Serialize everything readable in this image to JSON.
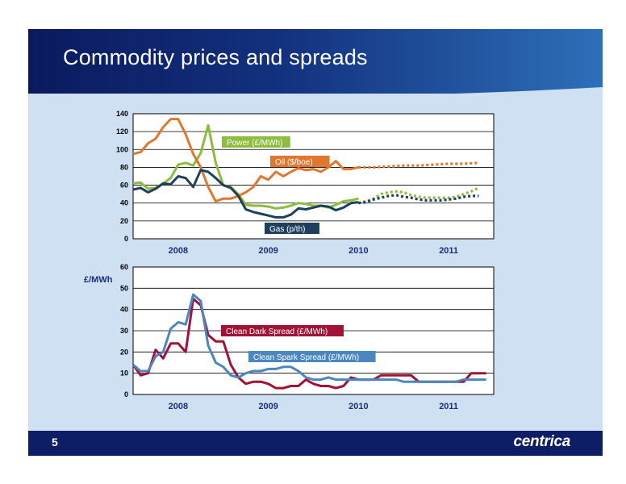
{
  "header": {
    "title": "Commodity prices and spreads"
  },
  "footer": {
    "page_number": "5",
    "logo": "centrica"
  },
  "colors": {
    "power": "#8dbd3c",
    "oil": "#e1772f",
    "gas": "#1f3f5f",
    "dark_spread": "#a31236",
    "spark_spread": "#4a86c0",
    "header": "#0b1a5e",
    "background": "#cfe0f2"
  },
  "chart_data": [
    {
      "type": "line",
      "ylim": [
        0,
        140
      ],
      "yticks": [
        0,
        20,
        40,
        60,
        80,
        100,
        120,
        140
      ],
      "year_labels": [
        "2008",
        "2009",
        "2010",
        "2011"
      ],
      "xlim": [
        0,
        48
      ],
      "grid": true,
      "series": [
        {
          "name": "Power (£/MWh)",
          "key": "power",
          "actual": [
            [
              0,
              62
            ],
            [
              1,
              63
            ],
            [
              2,
              56
            ],
            [
              3,
              57
            ],
            [
              4,
              62
            ],
            [
              5,
              68
            ],
            [
              6,
              83
            ],
            [
              7,
              85
            ],
            [
              8,
              82
            ],
            [
              9,
              96
            ],
            [
              10,
              127
            ],
            [
              11,
              85
            ],
            [
              12,
              60
            ],
            [
              13,
              58
            ],
            [
              14,
              50
            ],
            [
              15,
              38
            ],
            [
              16,
              37
            ],
            [
              17,
              37
            ],
            [
              18,
              36
            ],
            [
              19,
              34
            ],
            [
              20,
              35
            ],
            [
              21,
              37
            ],
            [
              22,
              40
            ],
            [
              23,
              39
            ],
            [
              24,
              37
            ],
            [
              25,
              37
            ],
            [
              26,
              35
            ],
            [
              27,
              38
            ],
            [
              28,
              42
            ],
            [
              29,
              43
            ],
            [
              30,
              45
            ]
          ],
          "forecast": [
            [
              30,
              40
            ],
            [
              31,
              42
            ],
            [
              32,
              45
            ],
            [
              33,
              50
            ],
            [
              34,
              52
            ],
            [
              35,
              53
            ],
            [
              36,
              52
            ],
            [
              37,
              49
            ],
            [
              38,
              47
            ],
            [
              39,
              46
            ],
            [
              40,
              46
            ],
            [
              41,
              46
            ],
            [
              42,
              46
            ],
            [
              43,
              47
            ],
            [
              44,
              50
            ],
            [
              45,
              53
            ],
            [
              46,
              57
            ]
          ]
        },
        {
          "name": "Oil ($/boe)",
          "key": "oil",
          "actual": [
            [
              0,
              95
            ],
            [
              1,
              97
            ],
            [
              2,
              107
            ],
            [
              3,
              112
            ],
            [
              4,
              125
            ],
            [
              5,
              134
            ],
            [
              6,
              134
            ],
            [
              7,
              117
            ],
            [
              8,
              95
            ],
            [
              9,
              80
            ],
            [
              10,
              58
            ],
            [
              11,
              42
            ],
            [
              12,
              45
            ],
            [
              13,
              45
            ],
            [
              14,
              48
            ],
            [
              15,
              52
            ],
            [
              16,
              58
            ],
            [
              17,
              70
            ],
            [
              18,
              66
            ],
            [
              19,
              75
            ],
            [
              20,
              70
            ],
            [
              21,
              75
            ],
            [
              22,
              79
            ],
            [
              23,
              77
            ],
            [
              24,
              78
            ],
            [
              25,
              75
            ],
            [
              26,
              80
            ],
            [
              27,
              87
            ],
            [
              28,
              78
            ],
            [
              29,
              78
            ],
            [
              30,
              80
            ]
          ],
          "forecast": [
            [
              30,
              80
            ],
            [
              32,
              80
            ],
            [
              34,
              81
            ],
            [
              36,
              82
            ],
            [
              38,
              82
            ],
            [
              40,
              83
            ],
            [
              42,
              84
            ],
            [
              44,
              84
            ],
            [
              46,
              85
            ]
          ]
        },
        {
          "name": "Gas (p/th)",
          "key": "gas",
          "actual": [
            [
              0,
              55
            ],
            [
              1,
              57
            ],
            [
              2,
              52
            ],
            [
              3,
              56
            ],
            [
              4,
              62
            ],
            [
              5,
              61
            ],
            [
              6,
              70
            ],
            [
              7,
              68
            ],
            [
              8,
              58
            ],
            [
              9,
              77
            ],
            [
              10,
              75
            ],
            [
              11,
              68
            ],
            [
              12,
              60
            ],
            [
              13,
              57
            ],
            [
              14,
              48
            ],
            [
              15,
              33
            ],
            [
              16,
              30
            ],
            [
              17,
              28
            ],
            [
              18,
              26
            ],
            [
              19,
              24
            ],
            [
              20,
              24
            ],
            [
              21,
              27
            ],
            [
              22,
              34
            ],
            [
              23,
              33
            ],
            [
              24,
              35
            ],
            [
              25,
              37
            ],
            [
              26,
              36
            ],
            [
              27,
              32
            ],
            [
              28,
              35
            ],
            [
              29,
              40
            ],
            [
              30,
              41
            ]
          ],
          "forecast": [
            [
              30,
              40
            ],
            [
              31,
              41
            ],
            [
              32,
              44
            ],
            [
              33,
              46
            ],
            [
              34,
              48
            ],
            [
              35,
              49
            ],
            [
              36,
              47
            ],
            [
              37,
              46
            ],
            [
              38,
              44
            ],
            [
              39,
              43
            ],
            [
              40,
              43
            ],
            [
              41,
              43
            ],
            [
              42,
              44
            ],
            [
              43,
              45
            ],
            [
              44,
              47
            ],
            [
              45,
              48
            ],
            [
              46,
              48
            ]
          ]
        }
      ]
    },
    {
      "type": "line",
      "ylabel": "£/MWh",
      "ylim": [
        0,
        60
      ],
      "yticks": [
        0,
        10,
        20,
        30,
        40,
        50,
        60
      ],
      "year_labels": [
        "2008",
        "2009",
        "2010",
        "2011"
      ],
      "xlim": [
        0,
        48
      ],
      "grid": true,
      "series": [
        {
          "name": "Clean Dark Spread (£/MWh)",
          "key": "dark_spread",
          "values": [
            [
              0,
              14
            ],
            [
              1,
              9
            ],
            [
              2,
              10
            ],
            [
              3,
              21
            ],
            [
              4,
              17
            ],
            [
              5,
              24
            ],
            [
              6,
              24
            ],
            [
              7,
              20
            ],
            [
              8,
              45
            ],
            [
              9,
              42
            ],
            [
              10,
              28
            ],
            [
              11,
              25
            ],
            [
              12,
              25
            ],
            [
              13,
              14
            ],
            [
              14,
              8
            ],
            [
              15,
              5
            ],
            [
              16,
              6
            ],
            [
              17,
              6
            ],
            [
              18,
              5
            ],
            [
              19,
              3
            ],
            [
              20,
              3
            ],
            [
              21,
              4
            ],
            [
              22,
              4
            ],
            [
              23,
              7
            ],
            [
              24,
              5
            ],
            [
              25,
              4
            ],
            [
              26,
              4
            ],
            [
              27,
              3
            ],
            [
              28,
              4
            ],
            [
              29,
              8
            ],
            [
              30,
              7
            ],
            [
              31,
              7
            ],
            [
              32,
              7
            ],
            [
              33,
              9
            ],
            [
              34,
              9
            ],
            [
              35,
              9
            ],
            [
              36,
              9
            ],
            [
              37,
              9
            ],
            [
              38,
              6
            ],
            [
              39,
              6
            ],
            [
              40,
              6
            ],
            [
              41,
              6
            ],
            [
              42,
              6
            ],
            [
              43,
              6
            ],
            [
              44,
              6
            ],
            [
              45,
              10
            ],
            [
              46,
              10
            ],
            [
              47,
              10
            ]
          ]
        },
        {
          "name": "Clean Spark Spread (£/MWh)",
          "key": "spark_spread",
          "values": [
            [
              0,
              14
            ],
            [
              1,
              11
            ],
            [
              2,
              11
            ],
            [
              3,
              18
            ],
            [
              4,
              20
            ],
            [
              5,
              31
            ],
            [
              6,
              34
            ],
            [
              7,
              33
            ],
            [
              8,
              47
            ],
            [
              9,
              44
            ],
            [
              10,
              23
            ],
            [
              11,
              15
            ],
            [
              12,
              13
            ],
            [
              13,
              9
            ],
            [
              14,
              8
            ],
            [
              15,
              10
            ],
            [
              16,
              11
            ],
            [
              17,
              11
            ],
            [
              18,
              12
            ],
            [
              19,
              12
            ],
            [
              20,
              13
            ],
            [
              21,
              13
            ],
            [
              22,
              11
            ],
            [
              23,
              8
            ],
            [
              24,
              7
            ],
            [
              25,
              7
            ],
            [
              26,
              8
            ],
            [
              27,
              7
            ],
            [
              28,
              7
            ],
            [
              29,
              7
            ],
            [
              30,
              7
            ],
            [
              31,
              7
            ],
            [
              32,
              7
            ],
            [
              33,
              7
            ],
            [
              34,
              7
            ],
            [
              35,
              7
            ],
            [
              36,
              6
            ],
            [
              37,
              6
            ],
            [
              38,
              6
            ],
            [
              39,
              6
            ],
            [
              40,
              6
            ],
            [
              41,
              6
            ],
            [
              42,
              6
            ],
            [
              43,
              6
            ],
            [
              44,
              7
            ],
            [
              45,
              7
            ],
            [
              46,
              7
            ],
            [
              47,
              7
            ]
          ]
        }
      ]
    }
  ]
}
